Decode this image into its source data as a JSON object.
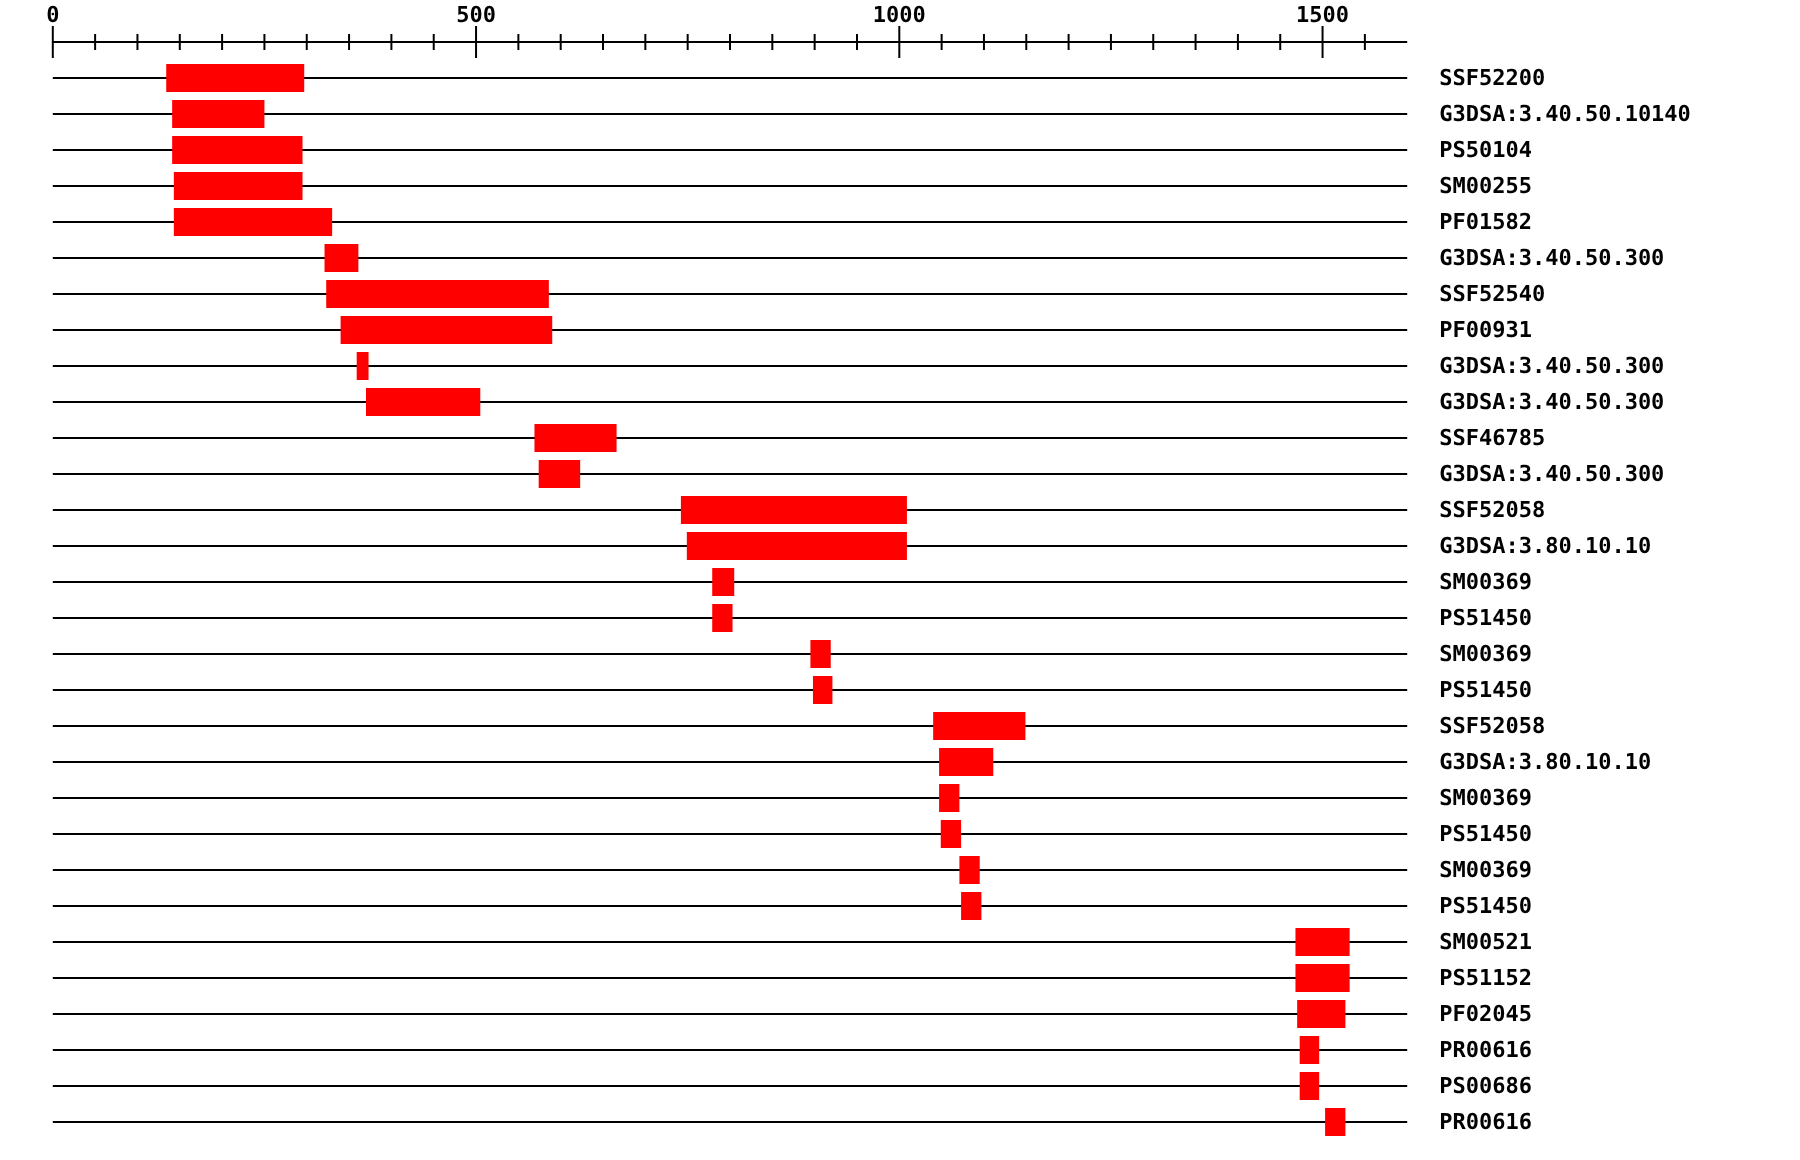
{
  "chart_data": {
    "type": "bar",
    "orientation": "horizontal",
    "grid": "y",
    "categories": [
      "SSF52200",
      "G3DSA:3.40.50.10140",
      "PS50104",
      "SM00255",
      "PF01582",
      "G3DSA:3.40.50.300",
      "SSF52540",
      "PF00931",
      "G3DSA:3.40.50.300",
      "G3DSA:3.40.50.300",
      "SSF46785",
      "G3DSA:3.40.50.300",
      "SSF52058",
      "G3DSA:3.80.10.10",
      "SM00369",
      "PS51450",
      "SM00369",
      "PS51450",
      "SSF52058",
      "G3DSA:3.80.10.10",
      "SM00369",
      "PS51450",
      "SM00369",
      "PS51450",
      "SM00521",
      "PS51152",
      "PF02045",
      "PR00616",
      "PS00686",
      "PR00616"
    ],
    "base": [
      134,
      141,
      141,
      143,
      143,
      321,
      323,
      340,
      359,
      370,
      569,
      574,
      742,
      749,
      779,
      779,
      895,
      898,
      1040,
      1047,
      1047,
      1049,
      1071,
      1073,
      1468,
      1468,
      1470,
      1473,
      1473,
      1503
    ],
    "values": [
      163,
      109,
      154,
      152,
      187,
      40,
      263,
      250,
      14,
      135,
      97,
      49,
      267,
      260,
      26,
      24,
      24,
      23,
      109,
      64,
      24,
      24,
      24,
      24,
      64,
      64,
      57,
      23,
      23,
      24
    ],
    "color": "#ff0000",
    "xlim": [
      0,
      1600
    ],
    "xticks": [
      0,
      {
        "value": 50,
        "label": null
      },
      {
        "value": 100,
        "label": null
      },
      {
        "value": 150,
        "label": null
      },
      {
        "value": 200,
        "label": null
      },
      {
        "value": 250,
        "label": null
      },
      {
        "value": 300,
        "label": null
      },
      {
        "value": 350,
        "label": null
      },
      {
        "value": 400,
        "label": null
      },
      {
        "value": 450,
        "label": null
      },
      500,
      {
        "value": 550,
        "label": null
      },
      {
        "value": 600,
        "label": null
      },
      {
        "value": 650,
        "label": null
      },
      {
        "value": 700,
        "label": null
      },
      {
        "value": 750,
        "label": null
      },
      {
        "value": 800,
        "label": null
      },
      {
        "value": 850,
        "label": null
      },
      {
        "value": 900,
        "label": null
      },
      {
        "value": 950,
        "label": null
      },
      1000,
      {
        "value": 1050,
        "label": null
      },
      {
        "value": 1100,
        "label": null
      },
      {
        "value": 1150,
        "label": null
      },
      {
        "value": 1200,
        "label": null
      },
      {
        "value": 1250,
        "label": null
      },
      {
        "value": 1300,
        "label": null
      },
      {
        "value": 1350,
        "label": null
      },
      {
        "value": 1400,
        "label": null
      },
      {
        "value": 1450,
        "label": null
      },
      1500,
      {
        "value": 1550,
        "label": null
      }
    ]
  }
}
